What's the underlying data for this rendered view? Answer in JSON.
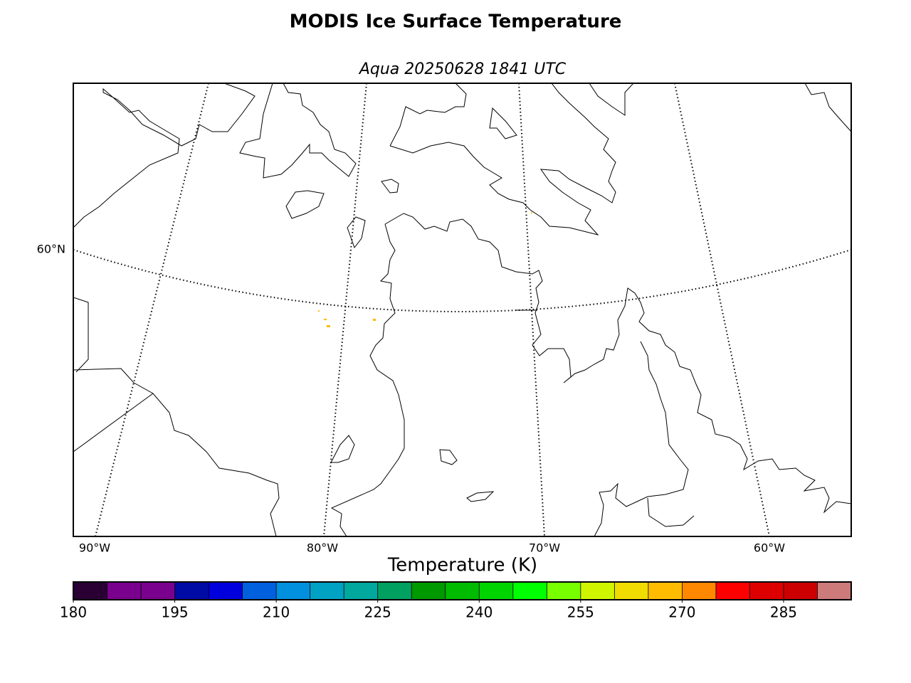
{
  "title": "MODIS Ice Surface Temperature",
  "subtitle": "Aqua 20250628 1841 UTC",
  "map": {
    "lat_labels": [
      "60°N"
    ],
    "lon_labels": [
      "90°W",
      "80°W",
      "70°W",
      "60°W"
    ]
  },
  "colorbar": {
    "label": "Temperature (K)",
    "bounds": [
      180,
      185,
      190,
      195,
      200,
      205,
      210,
      215,
      220,
      225,
      230,
      235,
      240,
      245,
      250,
      255,
      260,
      265,
      270,
      275,
      280,
      285,
      290,
      295
    ],
    "colors": [
      "#2a0034",
      "#7a008e",
      "#7a008e",
      "#000aa4",
      "#0000de",
      "#0060de",
      "#0090de",
      "#00a2c4",
      "#00a89e",
      "#00a060",
      "#009900",
      "#00bb00",
      "#00d400",
      "#00ff00",
      "#78ff00",
      "#d0f500",
      "#f0dc00",
      "#ffbc00",
      "#ff8800",
      "#ff0000",
      "#de0000",
      "#cc0000",
      "#cc7a7a"
    ],
    "ticks": [
      180,
      195,
      210,
      225,
      240,
      255,
      270,
      285
    ]
  }
}
